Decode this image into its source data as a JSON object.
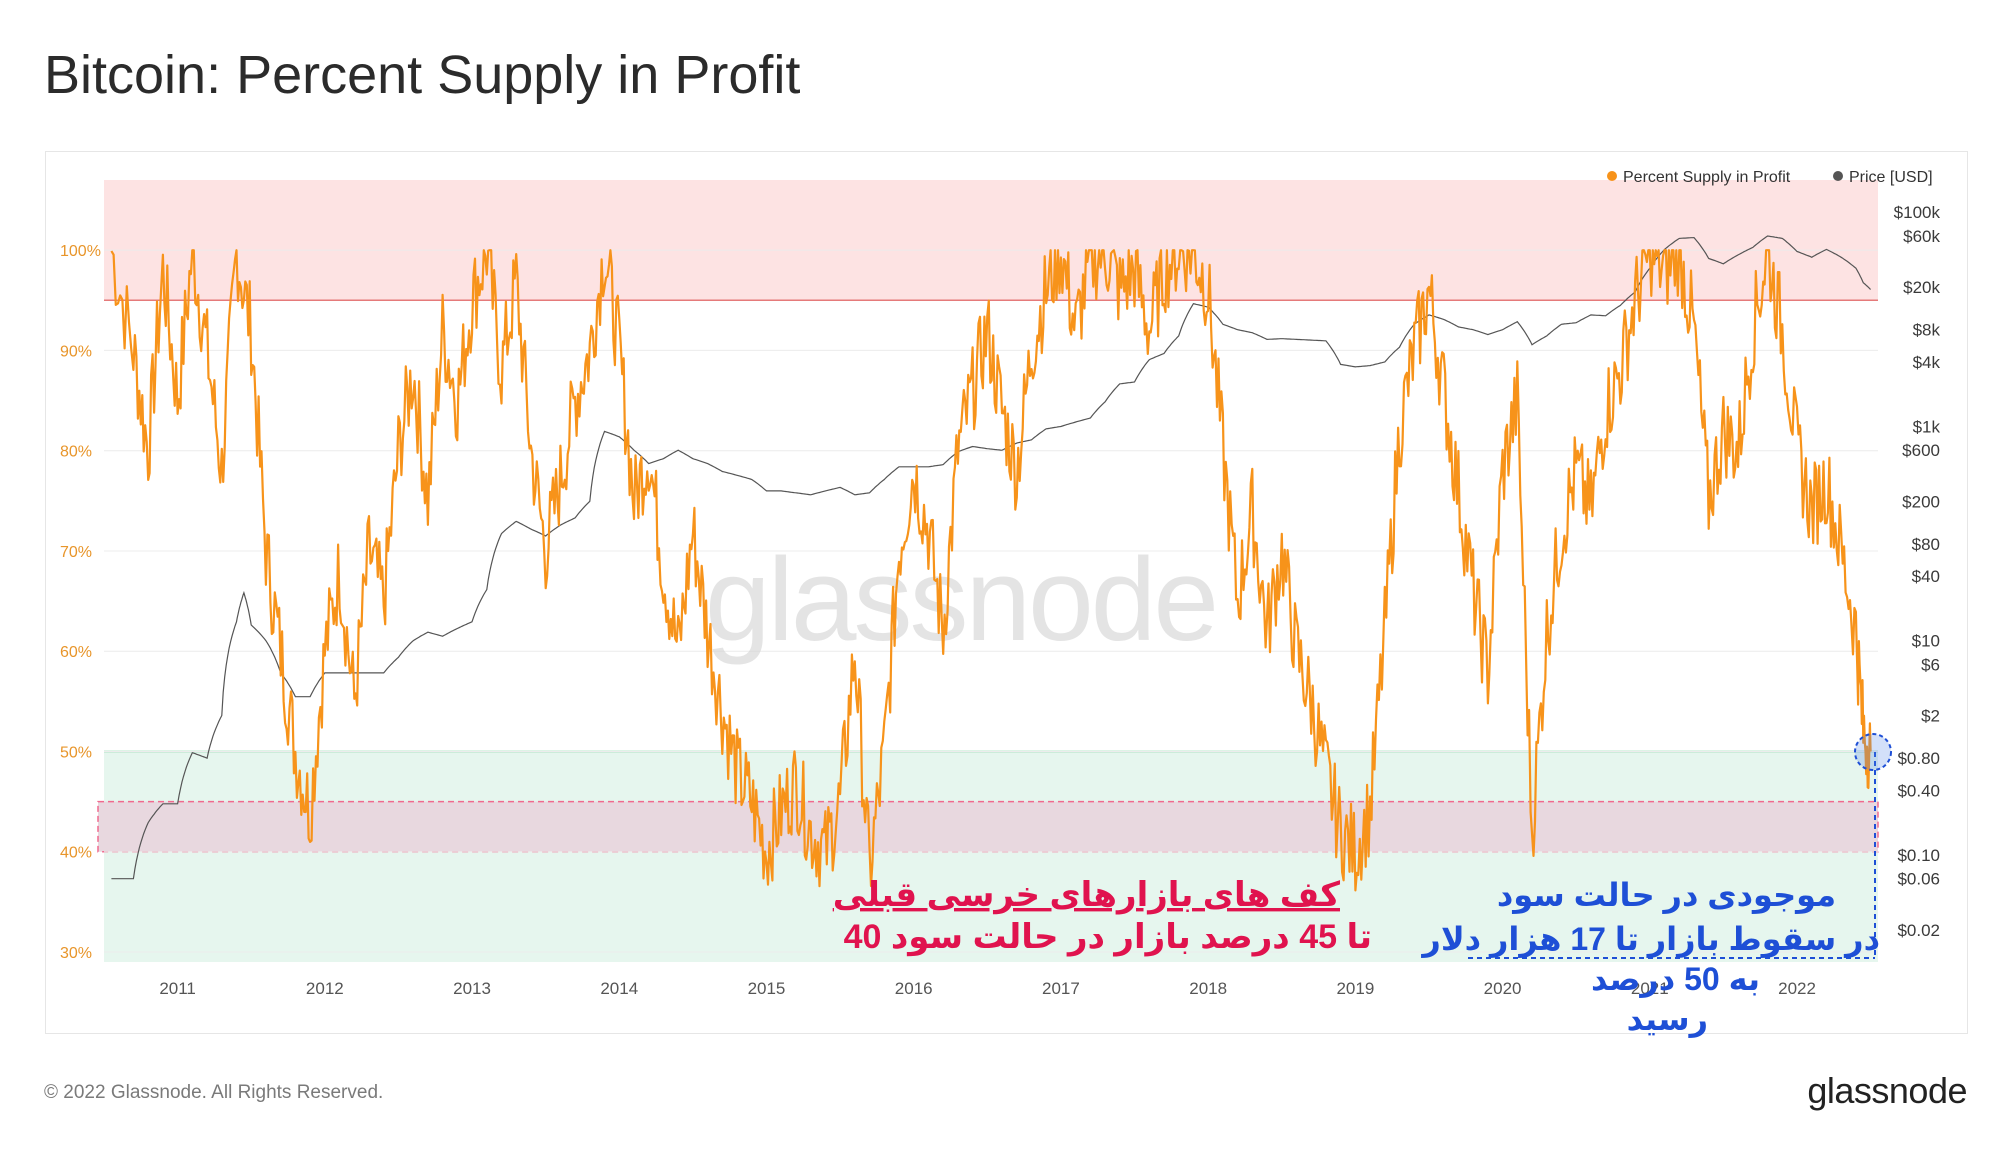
{
  "page": {
    "title": "Bitcoin: Percent Supply in Profit",
    "copyright": "© 2022 Glassnode. All Rights Reserved.",
    "brand": "glassnode",
    "watermark": "glassnode"
  },
  "colors": {
    "supply": "#f7931a",
    "price": "#555555",
    "red_zone": "#fde3e3",
    "red_line": "#e57a7a",
    "green_zone": "#e6f6ee",
    "green_line": "#7fcf9d",
    "bottom_box": "#e8d8df",
    "bottom_box_border": "#f06a8f",
    "annotation_red": "#e0134e",
    "annotation_blue": "#1e4fd6"
  },
  "annotations": {
    "bear_bottoms": {
      "line1": "کف های بازارهای خرسی قبلی",
      "line2": "40 تا 45 درصد بازار در حالت سود"
    },
    "current": {
      "line1": "موجودی در حالت سود",
      "line2": "در سقوط بازار تا 17 هزار دلار",
      "line3": "به 50 درصد",
      "line4": "رسید"
    }
  },
  "chart_data": {
    "type": "line",
    "title": "Bitcoin: Percent Supply in Profit",
    "legend": {
      "placement": "top-right",
      "entries": [
        "Percent Supply in Profit",
        "Price [USD]"
      ]
    },
    "y_left": {
      "ticks": [
        "100%",
        "90%",
        "80%",
        "70%",
        "60%",
        "50%",
        "40%",
        "30%"
      ],
      "ylim": [
        29,
        107
      ]
    },
    "y_right": {
      "scale": "log",
      "ticks": [
        "$100k",
        "$60k",
        "$20k",
        "$8k",
        "$4k",
        "$1k",
        "$600",
        "$200",
        "$80",
        "$40",
        "$10",
        "$6",
        "$2",
        "$0.80",
        "$0.40",
        "$0.10",
        "$0.06",
        "$0.02"
      ],
      "tick_values": [
        100000,
        60000,
        20000,
        8000,
        4000,
        1000,
        600,
        200,
        80,
        40,
        10,
        6,
        2,
        0.8,
        0.4,
        0.1,
        0.06,
        0.02
      ]
    },
    "x_ticks": [
      "2011",
      "2012",
      "2013",
      "2014",
      "2015",
      "2016",
      "2017",
      "2018",
      "2019",
      "2020",
      "2021",
      "2022"
    ],
    "xlim": [
      "2010-07",
      "2022-07"
    ],
    "zones": [
      {
        "name": "overheated",
        "from": 95,
        "to": 107
      },
      {
        "name": "undervalued",
        "from": 29,
        "to": 50
      },
      {
        "name": "bear-bottom-band",
        "from": 40,
        "to": 45
      }
    ],
    "series": [
      {
        "name": "Percent Supply in Profit",
        "points": [
          [
            2010.55,
            100
          ],
          [
            2010.7,
            90
          ],
          [
            2010.8,
            80
          ],
          [
            2010.9,
            98
          ],
          [
            2011.0,
            85
          ],
          [
            2011.1,
            100
          ],
          [
            2011.2,
            90
          ],
          [
            2011.3,
            78
          ],
          [
            2011.4,
            100
          ],
          [
            2011.5,
            92
          ],
          [
            2011.6,
            70
          ],
          [
            2011.7,
            60
          ],
          [
            2011.8,
            50
          ],
          [
            2011.9,
            44
          ],
          [
            2012.0,
            60
          ],
          [
            2012.1,
            68
          ],
          [
            2012.2,
            55
          ],
          [
            2012.3,
            70
          ],
          [
            2012.4,
            65
          ],
          [
            2012.5,
            80
          ],
          [
            2012.6,
            88
          ],
          [
            2012.7,
            75
          ],
          [
            2012.8,
            92
          ],
          [
            2012.9,
            85
          ],
          [
            2013.0,
            95
          ],
          [
            2013.1,
            100
          ],
          [
            2013.2,
            88
          ],
          [
            2013.3,
            97
          ],
          [
            2013.4,
            80
          ],
          [
            2013.5,
            70
          ],
          [
            2013.6,
            77
          ],
          [
            2013.7,
            85
          ],
          [
            2013.8,
            90
          ],
          [
            2013.9,
            100
          ],
          [
            2014.0,
            90
          ],
          [
            2014.1,
            75
          ],
          [
            2014.2,
            80
          ],
          [
            2014.3,
            68
          ],
          [
            2014.4,
            60
          ],
          [
            2014.5,
            72
          ],
          [
            2014.6,
            62
          ],
          [
            2014.7,
            54
          ],
          [
            2014.8,
            48
          ],
          [
            2014.9,
            45
          ],
          [
            2015.0,
            40
          ],
          [
            2015.1,
            44
          ],
          [
            2015.2,
            47
          ],
          [
            2015.3,
            42
          ],
          [
            2015.4,
            40
          ],
          [
            2015.5,
            45
          ],
          [
            2015.6,
            60
          ],
          [
            2015.7,
            38
          ],
          [
            2015.8,
            50
          ],
          [
            2015.9,
            70
          ],
          [
            2016.0,
            78
          ],
          [
            2016.1,
            72
          ],
          [
            2016.2,
            62
          ],
          [
            2016.3,
            80
          ],
          [
            2016.4,
            86
          ],
          [
            2016.5,
            92
          ],
          [
            2016.6,
            84
          ],
          [
            2016.7,
            78
          ],
          [
            2016.8,
            90
          ],
          [
            2016.9,
            96
          ],
          [
            2017.0,
            100
          ],
          [
            2017.1,
            92
          ],
          [
            2017.2,
            99
          ],
          [
            2017.3,
            100
          ],
          [
            2017.4,
            96
          ],
          [
            2017.5,
            98
          ],
          [
            2017.6,
            92
          ],
          [
            2017.7,
            98
          ],
          [
            2017.8,
            100
          ],
          [
            2017.9,
            100
          ],
          [
            2018.0,
            96
          ],
          [
            2018.1,
            80
          ],
          [
            2018.2,
            65
          ],
          [
            2018.3,
            74
          ],
          [
            2018.4,
            62
          ],
          [
            2018.5,
            70
          ],
          [
            2018.6,
            60
          ],
          [
            2018.7,
            55
          ],
          [
            2018.8,
            48
          ],
          [
            2018.9,
            42
          ],
          [
            2019.0,
            40
          ],
          [
            2019.1,
            44
          ],
          [
            2019.2,
            62
          ],
          [
            2019.3,
            82
          ],
          [
            2019.4,
            90
          ],
          [
            2019.5,
            96
          ],
          [
            2019.6,
            86
          ],
          [
            2019.7,
            76
          ],
          [
            2019.8,
            66
          ],
          [
            2019.9,
            58
          ],
          [
            2020.0,
            78
          ],
          [
            2020.1,
            85
          ],
          [
            2020.2,
            42
          ],
          [
            2020.3,
            62
          ],
          [
            2020.4,
            72
          ],
          [
            2020.5,
            78
          ],
          [
            2020.6,
            74
          ],
          [
            2020.7,
            84
          ],
          [
            2020.8,
            88
          ],
          [
            2020.9,
            95
          ],
          [
            2021.0,
            100
          ],
          [
            2021.1,
            98
          ],
          [
            2021.2,
            100
          ],
          [
            2021.3,
            92
          ],
          [
            2021.4,
            75
          ],
          [
            2021.5,
            82
          ],
          [
            2021.6,
            80
          ],
          [
            2021.7,
            92
          ],
          [
            2021.8,
            100
          ],
          [
            2021.9,
            92
          ],
          [
            2022.0,
            80
          ],
          [
            2022.1,
            74
          ],
          [
            2022.2,
            77
          ],
          [
            2022.3,
            70
          ],
          [
            2022.4,
            62
          ],
          [
            2022.45,
            52
          ],
          [
            2022.5,
            50
          ]
        ]
      },
      {
        "name": "Price [USD]",
        "points": [
          [
            2010.55,
            0.06
          ],
          [
            2010.7,
            0.06
          ],
          [
            2010.8,
            0.2
          ],
          [
            2010.9,
            0.3
          ],
          [
            2011.0,
            0.3
          ],
          [
            2011.1,
            0.9
          ],
          [
            2011.2,
            0.8
          ],
          [
            2011.3,
            2
          ],
          [
            2011.4,
            15
          ],
          [
            2011.45,
            28
          ],
          [
            2011.5,
            14
          ],
          [
            2011.6,
            10
          ],
          [
            2011.7,
            5
          ],
          [
            2011.8,
            3
          ],
          [
            2011.9,
            3
          ],
          [
            2012.0,
            5
          ],
          [
            2012.1,
            5
          ],
          [
            2012.2,
            5
          ],
          [
            2012.3,
            5
          ],
          [
            2012.4,
            5
          ],
          [
            2012.5,
            7
          ],
          [
            2012.6,
            10
          ],
          [
            2012.7,
            12
          ],
          [
            2012.8,
            11
          ],
          [
            2012.9,
            13
          ],
          [
            2013.0,
            15
          ],
          [
            2013.1,
            30
          ],
          [
            2013.2,
            100
          ],
          [
            2013.3,
            130
          ],
          [
            2013.4,
            110
          ],
          [
            2013.5,
            95
          ],
          [
            2013.6,
            120
          ],
          [
            2013.7,
            140
          ],
          [
            2013.8,
            200
          ],
          [
            2013.9,
            900
          ],
          [
            2014.0,
            800
          ],
          [
            2014.1,
            600
          ],
          [
            2014.2,
            450
          ],
          [
            2014.3,
            500
          ],
          [
            2014.4,
            600
          ],
          [
            2014.5,
            500
          ],
          [
            2014.6,
            450
          ],
          [
            2014.7,
            380
          ],
          [
            2014.8,
            350
          ],
          [
            2014.9,
            320
          ],
          [
            2015.0,
            250
          ],
          [
            2015.1,
            250
          ],
          [
            2015.2,
            240
          ],
          [
            2015.3,
            230
          ],
          [
            2015.4,
            250
          ],
          [
            2015.5,
            270
          ],
          [
            2015.6,
            230
          ],
          [
            2015.7,
            240
          ],
          [
            2015.8,
            320
          ],
          [
            2015.9,
            420
          ],
          [
            2016.0,
            420
          ],
          [
            2016.1,
            420
          ],
          [
            2016.2,
            440
          ],
          [
            2016.3,
            580
          ],
          [
            2016.4,
            650
          ],
          [
            2016.5,
            620
          ],
          [
            2016.6,
            600
          ],
          [
            2016.7,
            700
          ],
          [
            2016.8,
            750
          ],
          [
            2016.9,
            950
          ],
          [
            2017.0,
            1000
          ],
          [
            2017.1,
            1100
          ],
          [
            2017.2,
            1200
          ],
          [
            2017.3,
            1700
          ],
          [
            2017.4,
            2500
          ],
          [
            2017.5,
            2600
          ],
          [
            2017.6,
            4200
          ],
          [
            2017.7,
            4800
          ],
          [
            2017.8,
            7000
          ],
          [
            2017.9,
            14000
          ],
          [
            2018.0,
            13000
          ],
          [
            2018.1,
            9000
          ],
          [
            2018.2,
            8000
          ],
          [
            2018.3,
            7500
          ],
          [
            2018.4,
            6500
          ],
          [
            2018.5,
            6600
          ],
          [
            2018.6,
            6500
          ],
          [
            2018.7,
            6400
          ],
          [
            2018.8,
            6300
          ],
          [
            2018.9,
            3800
          ],
          [
            2019.0,
            3600
          ],
          [
            2019.1,
            3700
          ],
          [
            2019.2,
            4000
          ],
          [
            2019.3,
            5500
          ],
          [
            2019.4,
            9000
          ],
          [
            2019.5,
            11000
          ],
          [
            2019.6,
            10000
          ],
          [
            2019.7,
            8500
          ],
          [
            2019.8,
            8000
          ],
          [
            2019.9,
            7200
          ],
          [
            2020.0,
            8000
          ],
          [
            2020.1,
            9500
          ],
          [
            2020.2,
            5800
          ],
          [
            2020.3,
            7000
          ],
          [
            2020.4,
            9000
          ],
          [
            2020.5,
            9300
          ],
          [
            2020.6,
            11000
          ],
          [
            2020.7,
            10800
          ],
          [
            2020.8,
            13500
          ],
          [
            2020.9,
            18000
          ],
          [
            2021.0,
            30000
          ],
          [
            2021.1,
            45000
          ],
          [
            2021.2,
            57000
          ],
          [
            2021.3,
            58000
          ],
          [
            2021.4,
            37000
          ],
          [
            2021.5,
            33000
          ],
          [
            2021.6,
            40000
          ],
          [
            2021.7,
            47000
          ],
          [
            2021.8,
            60000
          ],
          [
            2021.9,
            57000
          ],
          [
            2022.0,
            43000
          ],
          [
            2022.1,
            38000
          ],
          [
            2022.2,
            45000
          ],
          [
            2022.3,
            38000
          ],
          [
            2022.4,
            30000
          ],
          [
            2022.45,
            22000
          ],
          [
            2022.5,
            19000
          ]
        ]
      }
    ]
  }
}
